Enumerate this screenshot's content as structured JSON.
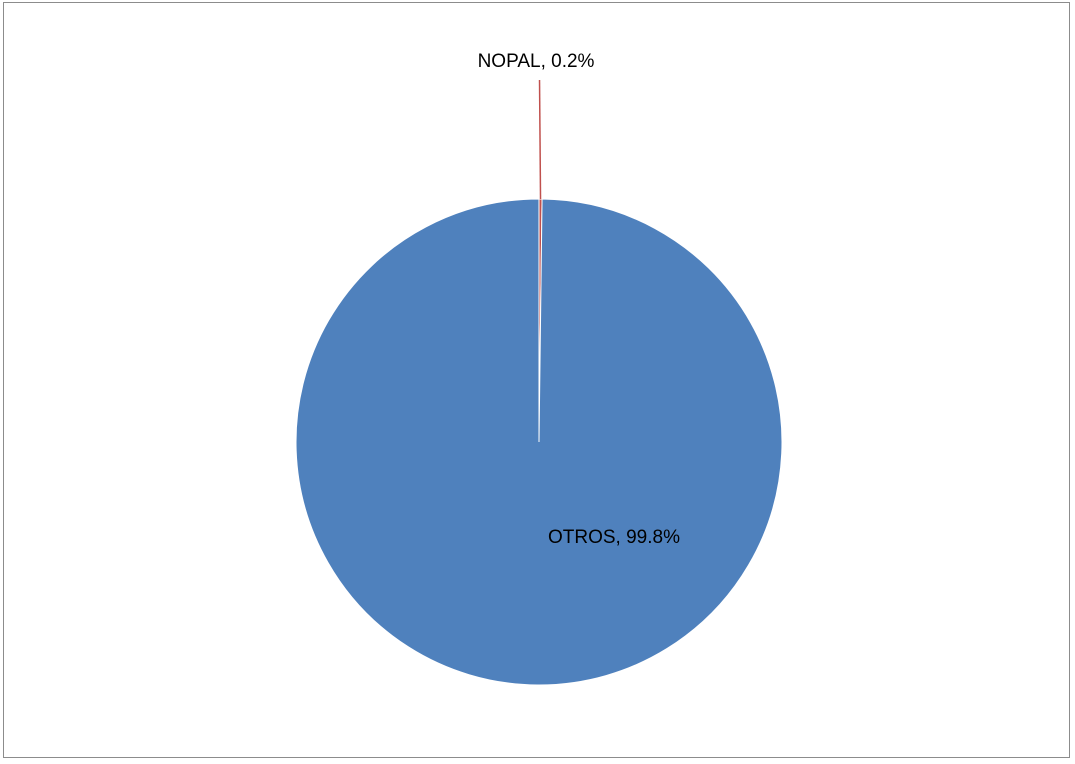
{
  "chart_data": {
    "type": "pie",
    "title": "",
    "slices": [
      {
        "label": "NOPAL",
        "value": 0.2,
        "display": "NOPAL, 0.2%",
        "color": "#c0504d"
      },
      {
        "label": "OTROS",
        "value": 99.8,
        "display": "OTROS, 99.8%",
        "color": "#4f81bd"
      }
    ],
    "legend": "none"
  }
}
